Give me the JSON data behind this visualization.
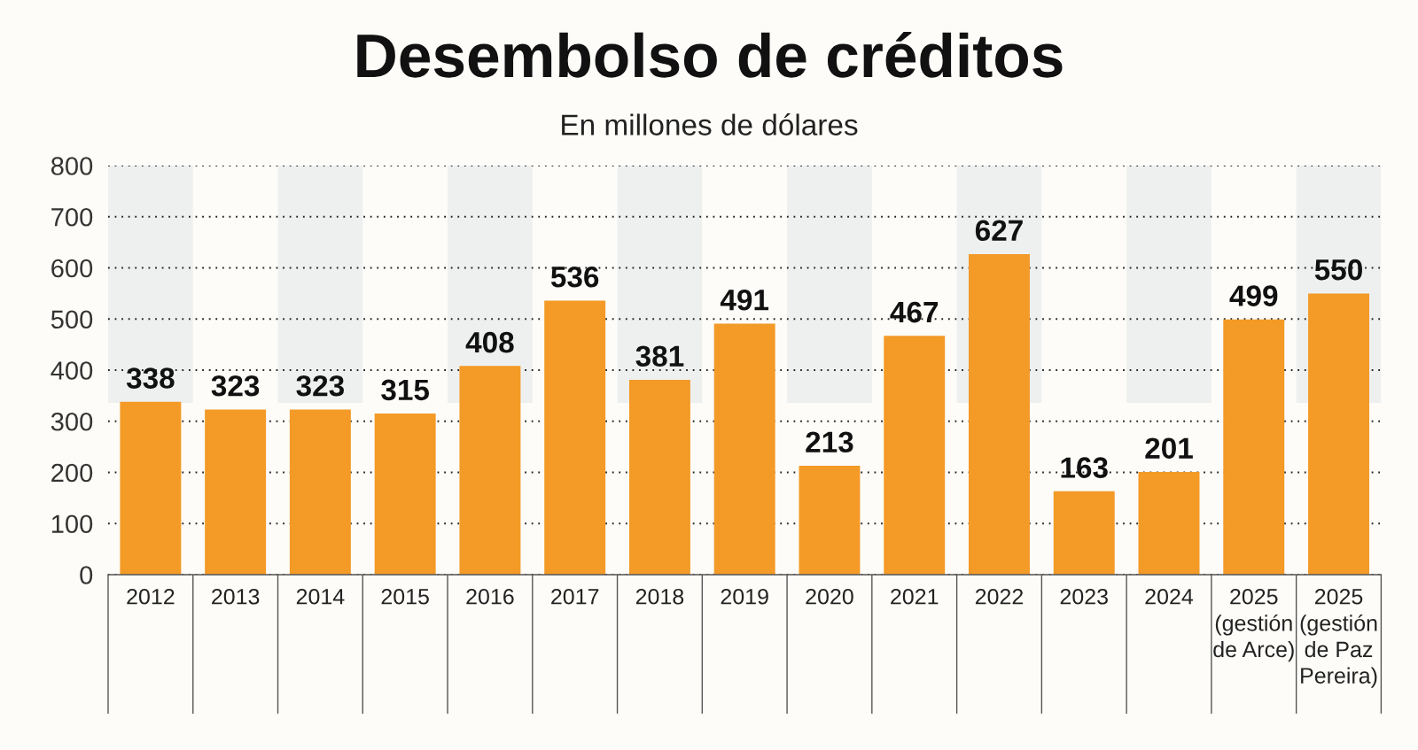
{
  "chart_data": {
    "type": "bar",
    "title": "Desembolso de créditos",
    "subtitle": "En millones de dólares",
    "categories": [
      "2012",
      "2013",
      "2014",
      "2015",
      "2016",
      "2017",
      "2018",
      "2019",
      "2020",
      "2021",
      "2022",
      "2023",
      "2024",
      "2025\n(gestión\nde Arce)",
      "2025\n(gestión\nde Paz\nPereira)"
    ],
    "values": [
      338,
      323,
      323,
      315,
      408,
      536,
      381,
      491,
      213,
      467,
      627,
      163,
      201,
      499,
      550
    ],
    "color": "#f39a27",
    "ylim": [
      0,
      800
    ],
    "yticks": [
      0,
      100,
      200,
      300,
      400,
      500,
      600,
      700,
      800
    ],
    "grid": "y",
    "data_labels": true
  }
}
